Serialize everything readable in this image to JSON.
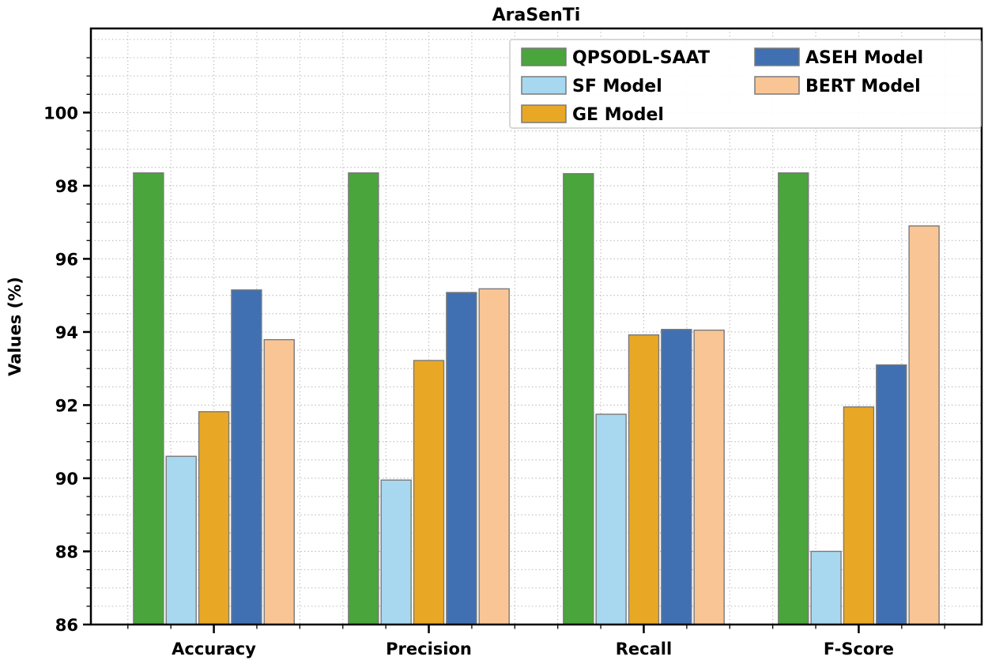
{
  "figure": {
    "title": "AraSenTi",
    "ylabel": "Values (%)"
  },
  "style": {
    "background": "#ffffff",
    "axis_color": "#000000",
    "grid_color": "#b3b3b3",
    "bar_edge_color": "#7a7a7a",
    "legend_border_color": "#cccccc",
    "text_color": "#000000"
  },
  "chart_data": {
    "type": "bar",
    "title": "AraSenTi",
    "xlabel": "",
    "ylabel": "Values (%)",
    "categories": [
      "Accuracy",
      "Precision",
      "Recall",
      "F-Score"
    ],
    "series": [
      {
        "name": "QPSODL-SAAT",
        "color": "#4aa53c",
        "values": [
          98.35,
          98.35,
          98.33,
          98.35
        ]
      },
      {
        "name": "SF Model",
        "color": "#a8d8f0",
        "values": [
          90.6,
          89.95,
          91.75,
          88.0
        ]
      },
      {
        "name": "GE Model",
        "color": "#e8a826",
        "values": [
          91.82,
          93.22,
          93.92,
          91.95
        ]
      },
      {
        "name": "ASEH Model",
        "color": "#4170b2",
        "values": [
          95.15,
          95.08,
          94.07,
          93.1
        ]
      },
      {
        "name": "BERT Model",
        "color": "#fac595",
        "values": [
          93.79,
          95.18,
          94.05,
          96.9
        ]
      }
    ],
    "ylim": [
      86,
      102.3
    ],
    "yticks": [
      86,
      88,
      90,
      92,
      94,
      96,
      98,
      100
    ],
    "minor_grid_step_y": 0.5,
    "grid": "dotted, both axes",
    "legend_position": "upper center inside plot, 2 columns",
    "legend_columns": [
      [
        "QPSODL-SAAT",
        "SF Model",
        "GE Model"
      ],
      [
        "ASEH Model",
        "BERT Model"
      ]
    ]
  }
}
